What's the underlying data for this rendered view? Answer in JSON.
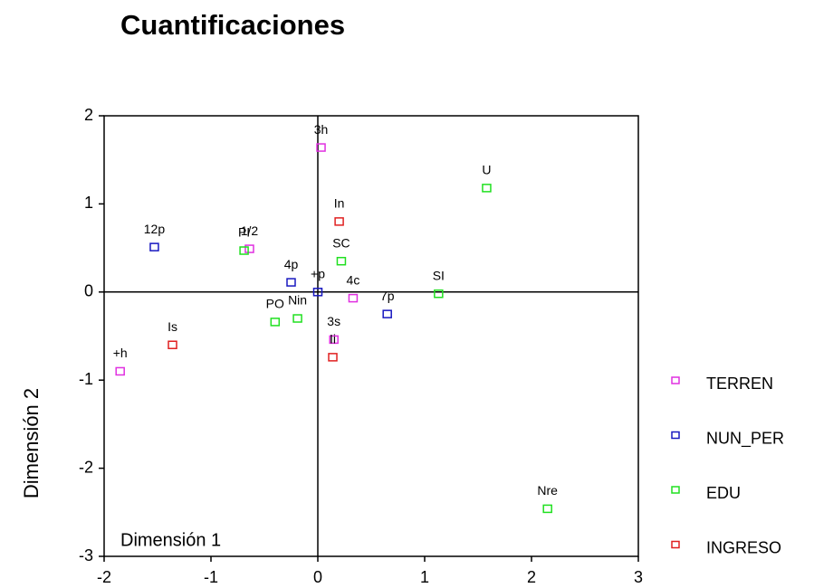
{
  "chart_data": {
    "type": "scatter",
    "title": "Cuantificaciones",
    "xlabel": "Dimensión 1",
    "ylabel": "Dimensión 2",
    "xlim": [
      -2,
      3
    ],
    "xticks": [
      -2,
      -1,
      0,
      1,
      2,
      3
    ],
    "ylim": [
      -3,
      2
    ],
    "yticks": [
      -3,
      -2,
      -1,
      0,
      1,
      2
    ],
    "legend": "right",
    "series": [
      {
        "name": "TERREN",
        "color": "#e030e0",
        "labels": [
          "3h",
          "1/2",
          "4c",
          "3s",
          "+h"
        ],
        "x": [
          0.03,
          -0.64,
          0.33,
          0.15,
          -1.85
        ],
        "values": [
          1.64,
          0.49,
          -0.07,
          -0.54,
          -0.9
        ]
      },
      {
        "name": "NUN_PER",
        "color": "#1818c0",
        "labels": [
          "12p",
          "4p",
          "+p",
          "7p"
        ],
        "x": [
          -1.53,
          -0.25,
          0,
          0.65
        ],
        "values": [
          0.51,
          0.11,
          0,
          -0.25
        ]
      },
      {
        "name": "EDU",
        "color": "#20e020",
        "labels": [
          "U",
          "PI",
          "SC",
          "SI",
          "PO",
          "Nin",
          "Nre"
        ],
        "x": [
          1.58,
          -0.69,
          0.22,
          1.13,
          -0.4,
          -0.19,
          2.15
        ],
        "values": [
          1.18,
          0.47,
          0.35,
          -0.02,
          -0.34,
          -0.3,
          -2.46
        ]
      },
      {
        "name": "INGRESO",
        "color": "#e02020",
        "labels": [
          "In",
          "Is",
          "Ii"
        ],
        "x": [
          0.2,
          -1.36,
          0.14
        ],
        "values": [
          0.8,
          -0.6,
          -0.74
        ]
      }
    ]
  }
}
